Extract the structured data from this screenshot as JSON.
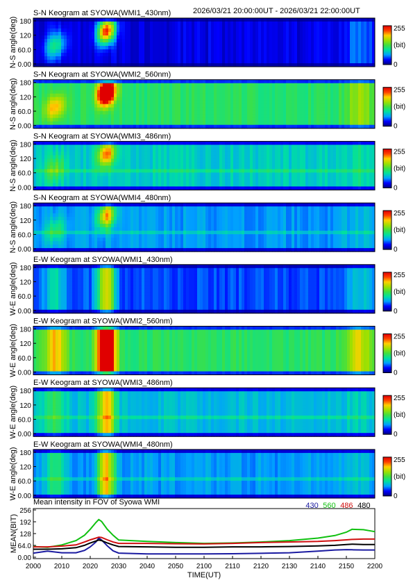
{
  "header": {
    "time_range": "2026/03/21 20:00:00UT - 2026/03/21 22:00:00UT"
  },
  "colorbar": {
    "max_label": "255",
    "unit_label": "(bit)",
    "min_label": "0",
    "colors": [
      "#00007f",
      "#0000ff",
      "#00a0ff",
      "#00e0a0",
      "#40e040",
      "#a0e000",
      "#ffd000",
      "#ff4000",
      "#e00000"
    ]
  },
  "keograms": [
    {
      "title": "S-N Keogram at SYOWA(WMI1_430nm)",
      "ylabel": "N-S angle(deg)",
      "kind": "ns",
      "base_level": 0.1,
      "aurora_peak": 0.85,
      "late_brightening": 0.25,
      "wide_lines": false
    },
    {
      "title": "S-N Keogram at SYOWA(WMI2_560nm)",
      "ylabel": "N-S angle(deg)",
      "kind": "ns",
      "base_level": 0.45,
      "aurora_peak": 1.0,
      "late_brightening": 0.65,
      "wide_lines": false
    },
    {
      "title": "S-N Keogram at SYOWA(WMI3_486nm)",
      "ylabel": "N-S angle(deg)",
      "kind": "ns",
      "base_level": 0.33,
      "aurora_peak": 0.55,
      "late_brightening": 0.4,
      "wide_lines": true
    },
    {
      "title": "S-N Keogram at SYOWA(WMI4_480nm)",
      "ylabel": "N-S angle(deg)",
      "kind": "ns",
      "base_level": 0.25,
      "aurora_peak": 0.55,
      "late_brightening": 0.3,
      "wide_lines": true
    },
    {
      "title": "E-W Keogram at SYOWA(WMI1_430nm)",
      "ylabel": "W-E angle(deg)",
      "kind": "ew",
      "base_level": 0.18,
      "aurora_peak": 0.6,
      "late_brightening": 0.35,
      "wide_lines": false
    },
    {
      "title": "E-W Keogram at SYOWA(WMI2_560nm)",
      "ylabel": "W-E angle(deg)",
      "kind": "ew",
      "base_level": 0.45,
      "aurora_peak": 1.0,
      "late_brightening": 0.75,
      "wide_lines": false
    },
    {
      "title": "E-W Keogram at SYOWA(WMI3_486nm)",
      "ylabel": "W-E angle(deg)",
      "kind": "ew",
      "base_level": 0.3,
      "aurora_peak": 0.55,
      "late_brightening": 0.35,
      "wide_lines": true
    },
    {
      "title": "E-W Keogram at SYOWA(WMI4_480nm)",
      "ylabel": "W-E angle(deg)",
      "kind": "ew",
      "base_level": 0.25,
      "aurora_peak": 0.55,
      "late_brightening": 0.3,
      "wide_lines": true
    }
  ],
  "keogram_yticks": [
    "180",
    "120",
    "60.0",
    "0.00"
  ],
  "chart_data": {
    "type": "line",
    "title": "Mean intensity in FOV of Syowa WMI",
    "xlabel": "TIME(UT)",
    "ylabel": "MEAN(BIT)",
    "xlim": [
      2000,
      2200
    ],
    "ylim": [
      0,
      256
    ],
    "xticks": [
      "2000",
      "2010",
      "2020",
      "2030",
      "2040",
      "2050",
      "2100",
      "2110",
      "2120",
      "2130",
      "2140",
      "2150",
      "2200"
    ],
    "yticks": [
      "256",
      "192",
      "128",
      "64.0",
      "0.00"
    ],
    "legend_position": "top-right",
    "x_minutes": [
      0,
      5,
      10,
      15,
      18,
      20,
      22,
      23,
      24,
      26,
      28,
      30,
      40,
      50,
      60,
      70,
      80,
      90,
      100,
      106,
      110,
      112,
      116,
      120
    ],
    "series": [
      {
        "name": "430",
        "color": "#1a1aa0",
        "values": [
          28,
          38,
          30,
          30,
          42,
          60,
          85,
          105,
          95,
          65,
          40,
          28,
          24,
          24,
          24,
          25,
          27,
          30,
          38,
          44,
          46,
          45,
          44,
          44
        ]
      },
      {
        "name": "560",
        "color": "#10c010",
        "values": [
          62,
          58,
          70,
          92,
          120,
          150,
          185,
          200,
          190,
          150,
          120,
          95,
          88,
          82,
          78,
          80,
          85,
          92,
          105,
          118,
          135,
          150,
          148,
          138
        ]
      },
      {
        "name": "486",
        "color": "#d01010",
        "values": [
          60,
          60,
          64,
          70,
          85,
          96,
          105,
          110,
          108,
          96,
          85,
          78,
          78,
          76,
          75,
          78,
          82,
          85,
          88,
          92,
          96,
          98,
          100,
          100
        ]
      },
      {
        "name": "480",
        "color": "#000000",
        "values": [
          48,
          48,
          50,
          56,
          68,
          80,
          90,
          95,
          92,
          80,
          70,
          62,
          60,
          58,
          58,
          60,
          60,
          62,
          65,
          68,
          72,
          74,
          72,
          72
        ]
      }
    ]
  }
}
